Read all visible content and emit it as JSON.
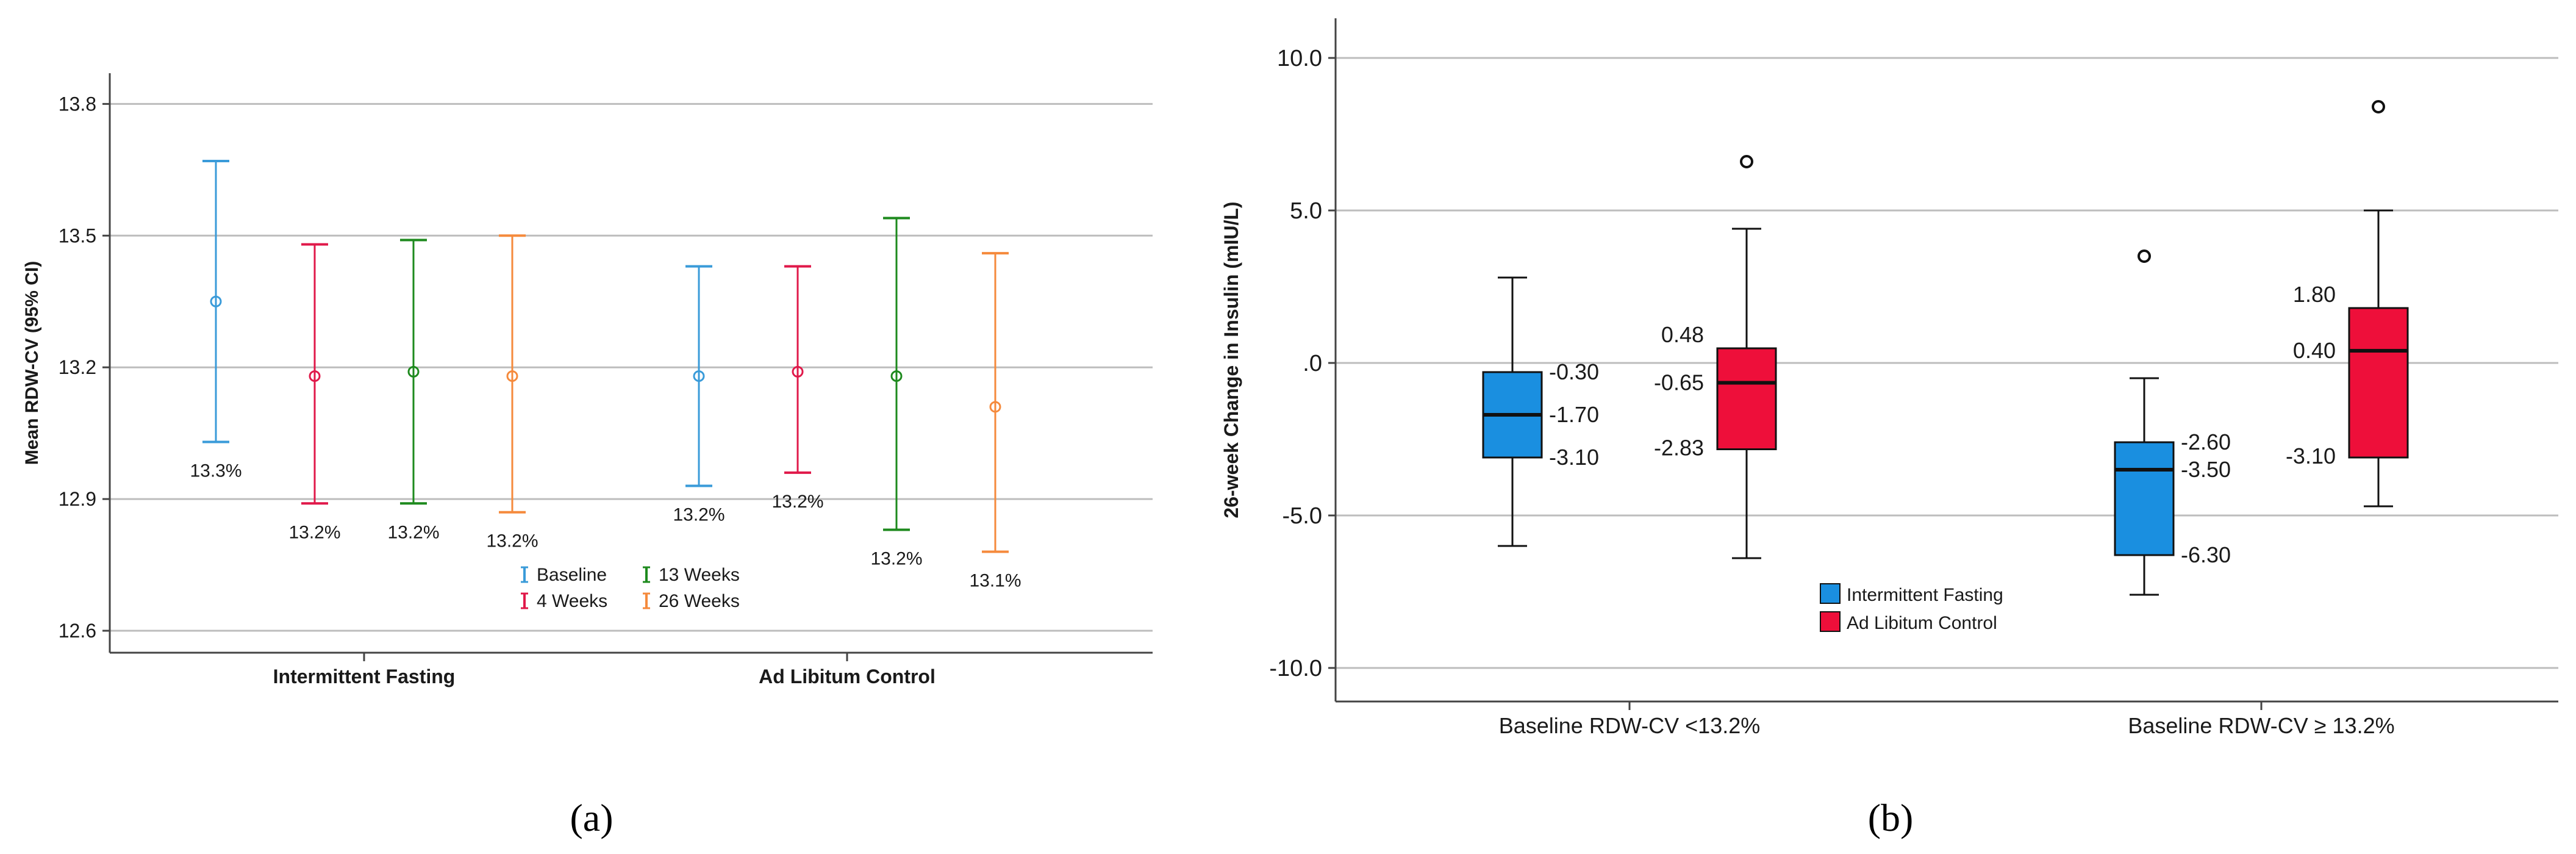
{
  "figure": {
    "panel_a_label": "(a)",
    "panel_b_label": "(b)"
  },
  "chart_data": [
    {
      "type": "errorbar",
      "panel": "(a)",
      "ylabel": "Mean RDW-CV (95% CI)",
      "xlabel": "",
      "ylim": [
        12.55,
        13.87
      ],
      "yticks": [
        "12.6",
        "12.9",
        "13.2",
        "13.5",
        "13.8"
      ],
      "ytick_values": [
        12.6,
        12.9,
        13.2,
        13.5,
        13.8
      ],
      "grid": true,
      "groups": [
        "Intermittent Fasting",
        "Ad Libitum Control"
      ],
      "legend": {
        "position": "bottom-center",
        "entries": [
          "Baseline",
          "13 Weeks",
          "4 Weeks",
          "26 Weeks"
        ]
      },
      "series": [
        {
          "name": "Baseline",
          "color": "#3a9bd9",
          "mean": [
            13.35,
            13.18
          ],
          "lower": [
            13.03,
            12.93
          ],
          "upper": [
            13.67,
            13.43
          ],
          "labels": [
            "13.3%",
            "13.2%"
          ]
        },
        {
          "name": "4 Weeks",
          "color": "#e0194a",
          "mean": [
            13.18,
            13.19
          ],
          "lower": [
            12.89,
            12.96
          ],
          "upper": [
            13.48,
            13.43
          ],
          "labels": [
            "13.2%",
            "13.2%"
          ]
        },
        {
          "name": "13 Weeks",
          "color": "#1e8a1e",
          "mean": [
            13.19,
            13.18
          ],
          "lower": [
            12.89,
            12.83
          ],
          "upper": [
            13.49,
            13.54
          ],
          "labels": [
            "13.2%",
            "13.2%"
          ]
        },
        {
          "name": "26 Weeks",
          "color": "#f58a3c",
          "mean": [
            13.18,
            13.11
          ],
          "lower": [
            12.87,
            12.78
          ],
          "upper": [
            13.5,
            13.46
          ],
          "labels": [
            "13.2%",
            "13.1%"
          ]
        }
      ]
    },
    {
      "type": "box",
      "panel": "(b)",
      "ylabel": "26-week Change in Insulin (mIU/L)",
      "xlabel": "",
      "ylim": [
        -11.1,
        11.3
      ],
      "yticks": [
        "10.0",
        "5.0",
        ".0",
        "-5.0",
        "-10.0"
      ],
      "ytick_values": [
        10,
        5,
        0,
        -5,
        -10
      ],
      "grid": true,
      "categories": [
        "Baseline RDW-CV <13.2%",
        "Baseline RDW-CV ≥ 13.2%"
      ],
      "legend": {
        "position": "bottom-center",
        "entries": [
          "Intermittent Fasting",
          "Ad Libitum Control"
        ]
      },
      "series": [
        {
          "name": "Intermittent Fasting",
          "color": "#1a8fe0",
          "boxes": [
            {
              "whisker_low": -6.0,
              "q1": -3.1,
              "median": -1.7,
              "q3": -0.3,
              "whisker_high": 2.8,
              "outliers": [],
              "labels": {
                "q3": "-0.30",
                "median": "-1.70",
                "q1": "-3.10"
              }
            },
            {
              "whisker_low": -7.6,
              "q1": -6.3,
              "median": -3.5,
              "q3": -2.6,
              "whisker_high": -0.5,
              "outliers": [
                3.5
              ],
              "labels": {
                "q3": "-2.60",
                "median": "-3.50",
                "q1": "-6.30"
              }
            }
          ]
        },
        {
          "name": "Ad Libitum Control",
          "color": "#ee0f3a",
          "boxes": [
            {
              "whisker_low": -6.4,
              "q1": -2.83,
              "median": -0.65,
              "q3": 0.48,
              "whisker_high": 4.4,
              "outliers": [
                6.6
              ],
              "labels": {
                "q3": "0.48",
                "median": "-0.65",
                "q1": "-2.83"
              }
            },
            {
              "whisker_low": -4.7,
              "q1": -3.1,
              "median": 0.4,
              "q3": 1.8,
              "whisker_high": 5.0,
              "outliers": [
                8.4
              ],
              "labels": {
                "q3": "1.80",
                "median": "0.40",
                "q1": "-3.10"
              }
            }
          ]
        }
      ]
    }
  ]
}
